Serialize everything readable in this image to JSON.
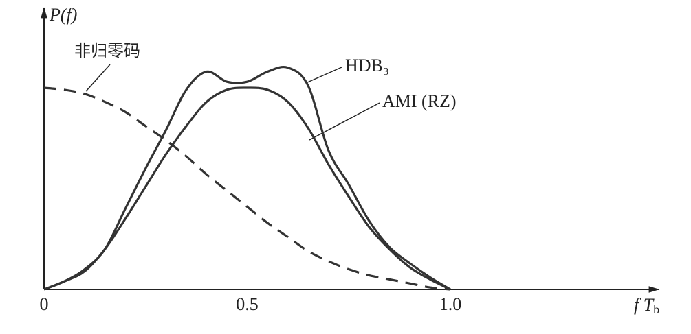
{
  "chart_data": {
    "type": "line",
    "y_label": "P(f)",
    "x_label": "f Tb",
    "x": [
      0,
      0.05,
      0.1,
      0.15,
      0.2,
      0.25,
      0.3,
      0.35,
      0.4,
      0.45,
      0.5,
      0.55,
      0.6,
      0.65,
      0.7,
      0.75,
      0.8,
      0.85,
      0.9,
      0.95,
      1.0
    ],
    "series": [
      {
        "name": "非归零码",
        "color": "#333333",
        "style": "dashed",
        "values": [
          1,
          0.99,
          0.97,
          0.93,
          0.88,
          0.81,
          0.74,
          0.66,
          0.57,
          0.49,
          0.41,
          0.33,
          0.26,
          0.19,
          0.14,
          0.1,
          0.07,
          0.05,
          0.03,
          0.01,
          0
        ]
      },
      {
        "name": "HDB₃",
        "color": "#333333",
        "style": "solid",
        "values": [
          0,
          0.04,
          0.1,
          0.2,
          0.4,
          0.6,
          0.79,
          0.99,
          1.08,
          1.03,
          1.03,
          1.08,
          1.1,
          1.01,
          0.69,
          0.52,
          0.34,
          0.21,
          0.13,
          0.06,
          0
        ]
      },
      {
        "name": "AMI (RZ)",
        "color": "#333333",
        "style": "solid",
        "values": [
          0,
          0.04,
          0.09,
          0.2,
          0.35,
          0.51,
          0.67,
          0.81,
          0.93,
          0.99,
          1.0,
          0.99,
          0.93,
          0.8,
          0.62,
          0.46,
          0.31,
          0.2,
          0.11,
          0.05,
          0
        ]
      }
    ],
    "xlim": [
      0,
      1.51
    ],
    "ylim": [
      0,
      1.38
    ],
    "xticks": [
      0,
      0.5,
      {
        "value": 1,
        "label": "1.0"
      }
    ],
    "grid": false
  }
}
